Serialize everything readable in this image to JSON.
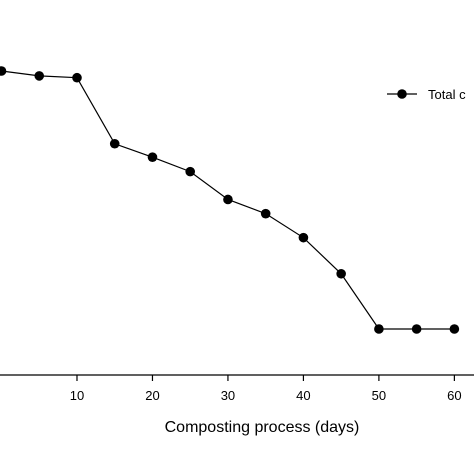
{
  "chart_data": {
    "type": "line",
    "title": "",
    "xlabel": "Composting process (days)",
    "ylabel": "",
    "x_ticks": [
      10,
      20,
      30,
      40,
      50,
      60
    ],
    "xlim": [
      -0.2,
      62.6
    ],
    "grid": false,
    "legend_position": "top-right",
    "series": [
      {
        "name": "Total c",
        "color": "#000000",
        "marker": "filled-circle",
        "x": [
          0,
          5,
          10,
          15,
          20,
          25,
          30,
          35,
          40,
          45,
          50,
          55,
          60
        ],
        "y": [
          100,
          98.1,
          97.4,
          71.8,
          66.6,
          61.0,
          50.2,
          44.7,
          35.4,
          21.4,
          0,
          0,
          0
        ]
      }
    ]
  }
}
